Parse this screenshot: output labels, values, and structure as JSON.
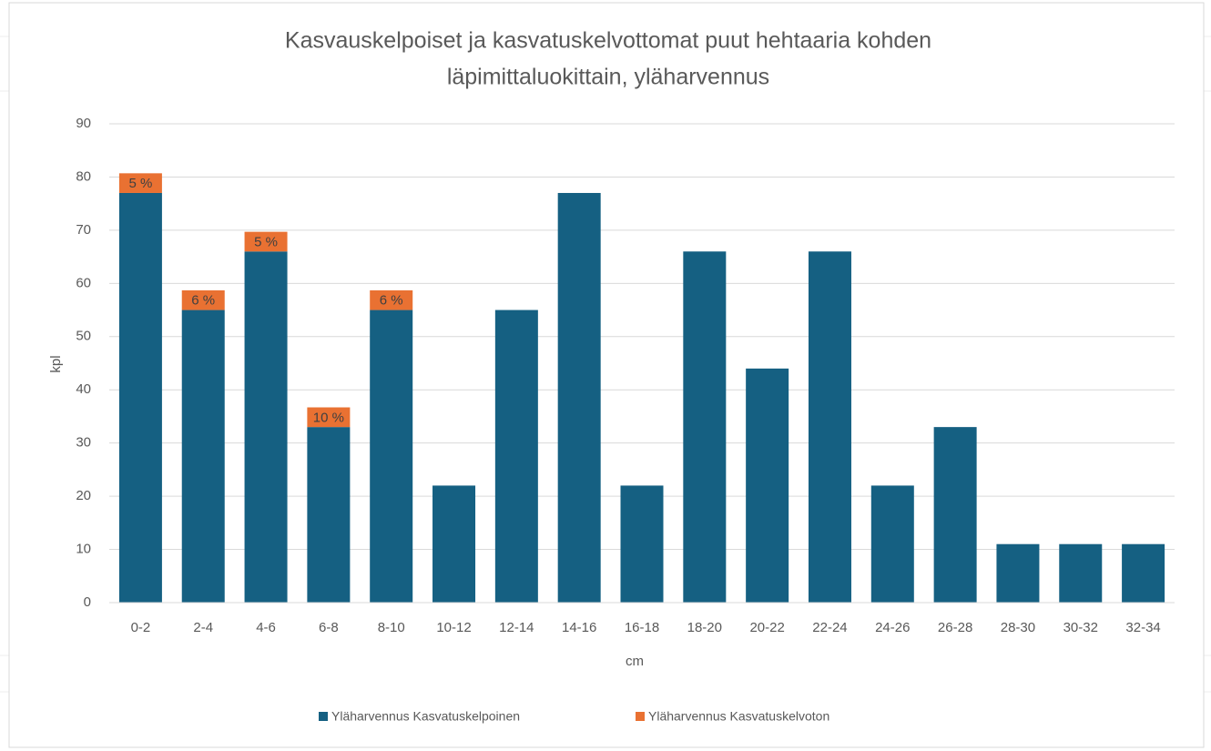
{
  "chart_data": {
    "type": "stacked_bar",
    "title": [
      "Kasvauskelpoiset ja kasvatuskelvottomat puut hehtaaria kohden",
      "läpimittaluokittain, yläharvennus"
    ],
    "x_label": "cm",
    "y_label": "kpl",
    "categories": [
      "0-2",
      "2-4",
      "4-6",
      "6-8",
      "8-10",
      "10-12",
      "12-14",
      "14-16",
      "16-18",
      "18-20",
      "20-22",
      "22-24",
      "24-26",
      "26-28",
      "28-30",
      "30-32",
      "32-34"
    ],
    "series": [
      {
        "name": "Yläharvennus Kasvatuskelpoinen",
        "color": "#156082",
        "values": [
          77,
          55,
          66,
          33,
          55,
          22,
          55,
          77,
          22,
          66,
          44,
          66,
          22,
          33,
          11,
          11,
          11
        ]
      },
      {
        "name": "Yläharvennus Kasvatuskelvoton",
        "color": "#e97132",
        "values": [
          3.7,
          3.7,
          3.7,
          3.7,
          3.7,
          null,
          null,
          null,
          null,
          null,
          null,
          null,
          null,
          null,
          null,
          null,
          null
        ],
        "share_labels": [
          "5 %",
          "6 %",
          "5 %",
          "10 %",
          "6 %",
          null,
          null,
          null,
          null,
          null,
          null,
          null,
          null,
          null,
          null,
          null,
          null
        ]
      }
    ],
    "ylim": [
      0,
      90
    ],
    "yticks": [
      0,
      10,
      20,
      30,
      40,
      50,
      60,
      70,
      80,
      90
    ],
    "grid": true,
    "legend": "bottom"
  }
}
